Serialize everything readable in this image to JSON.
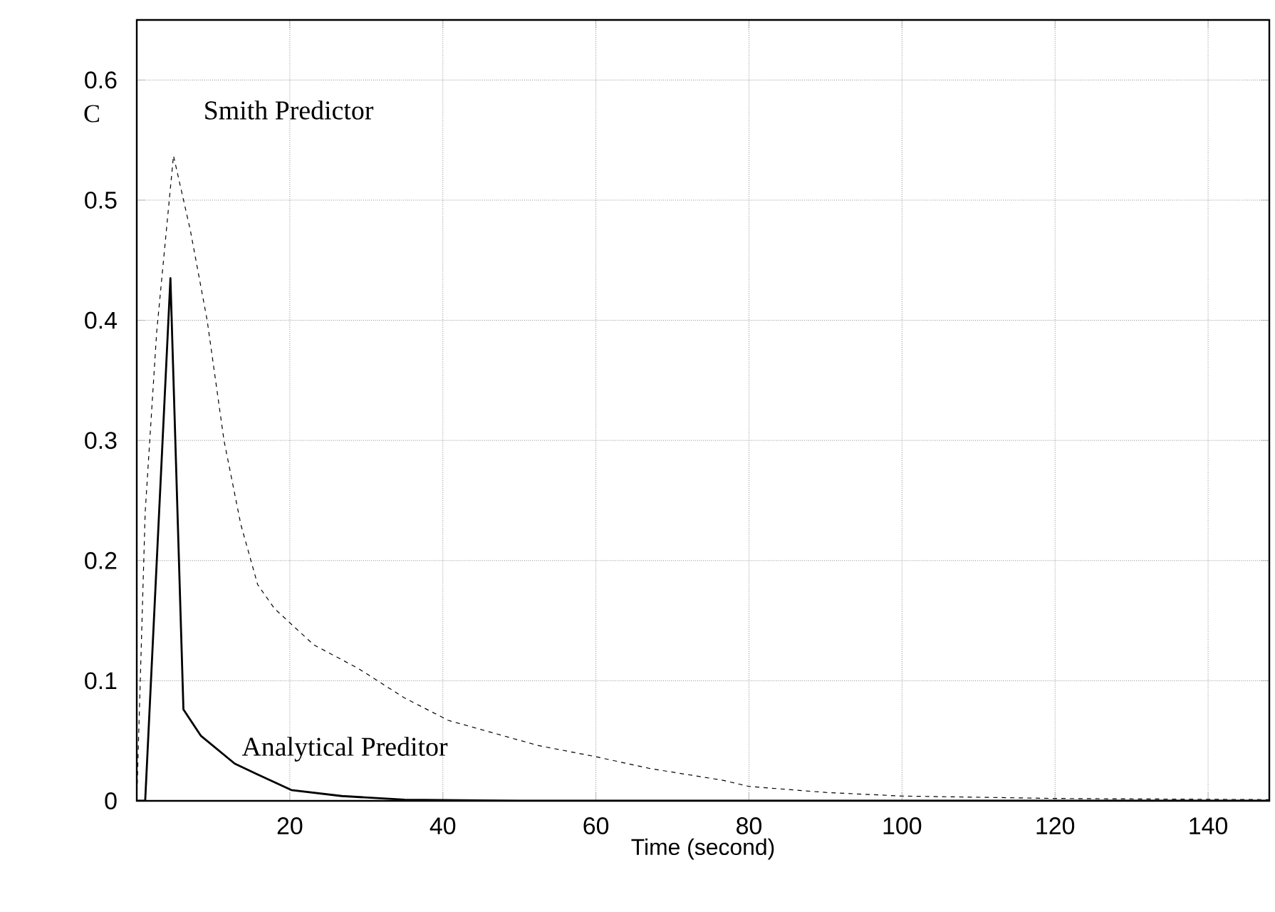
{
  "chart_data": {
    "type": "line",
    "xlabel": "Time (second)",
    "ylabel": "C",
    "xlim": [
      0,
      148
    ],
    "ylim": [
      0,
      0.65
    ],
    "xticks": [
      20,
      40,
      60,
      80,
      100,
      120,
      140
    ],
    "yticks": [
      0,
      0.1,
      0.2,
      0.3,
      0.4,
      0.5,
      0.6
    ],
    "grid": true,
    "series": [
      {
        "name": "Smith Predictor",
        "color": "#000000",
        "line_style": "dashed",
        "x": [
          0,
          1.1,
          2.6,
          4.8,
          7,
          9.2,
          11.4,
          13.6,
          15.8,
          18,
          23.1,
          29,
          34.9,
          40.7,
          52.5,
          59.8,
          67,
          76.7,
          80,
          90,
          100,
          120,
          148
        ],
        "values": [
          0,
          0.24,
          0.39,
          0.537,
          0.475,
          0.4,
          0.3,
          0.23,
          0.18,
          0.16,
          0.13,
          0.11,
          0.086,
          0.067,
          0.046,
          0.037,
          0.027,
          0.017,
          0.012,
          0.007,
          0.004,
          0.002,
          0.001
        ]
      },
      {
        "name": "Analytical Preditor",
        "color": "#000000",
        "line_style": "solid",
        "x": [
          0,
          1.1,
          4.4,
          6.1,
          8.4,
          12.8,
          15.8,
          20.2,
          26.8,
          35,
          50,
          148
        ],
        "values": [
          0,
          0,
          0.435,
          0.076,
          0.054,
          0.031,
          0.022,
          0.009,
          0.004,
          0.001,
          0,
          0
        ]
      }
    ]
  }
}
